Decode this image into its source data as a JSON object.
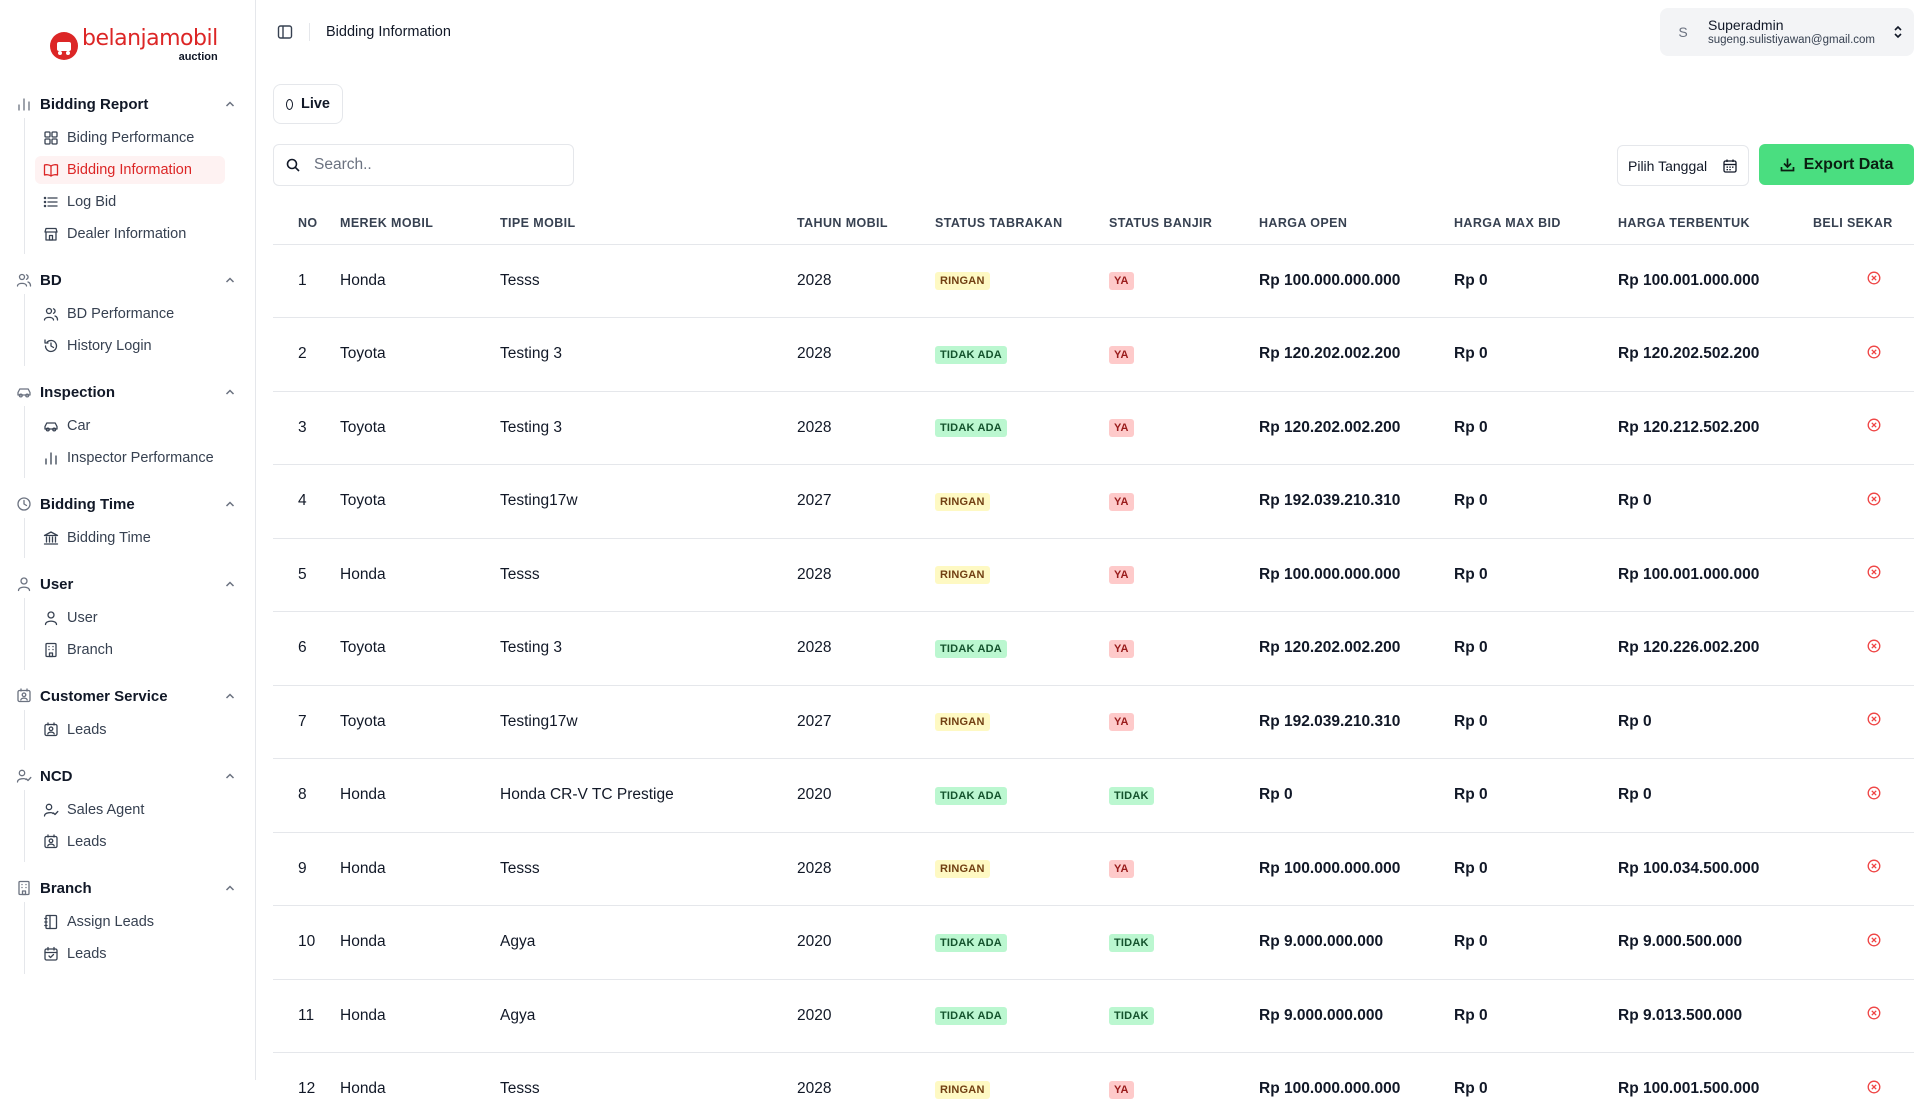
{
  "brand": {
    "name": "belanjamobil",
    "sub": "auction",
    "color": "#dc2626"
  },
  "sidebar": {
    "groups": [
      {
        "label": "Bidding Report",
        "icon": "bar-chart-icon",
        "items": [
          {
            "label": "Biding Performance",
            "icon": "grid-icon"
          },
          {
            "label": "Bidding Information",
            "icon": "book-icon",
            "active": true
          },
          {
            "label": "Log Bid",
            "icon": "list-icon"
          },
          {
            "label": "Dealer Information",
            "icon": "store-icon"
          }
        ]
      },
      {
        "label": "BD",
        "icon": "users-icon",
        "items": [
          {
            "label": "BD Performance",
            "icon": "users-icon"
          },
          {
            "label": "History Login",
            "icon": "history-icon"
          }
        ]
      },
      {
        "label": "Inspection",
        "icon": "car-icon",
        "items": [
          {
            "label": "Car",
            "icon": "car-icon"
          },
          {
            "label": "Inspector Performance",
            "icon": "bar-chart-icon"
          }
        ]
      },
      {
        "label": "Bidding Time",
        "icon": "clock-icon",
        "items": [
          {
            "label": "Bidding Time",
            "icon": "landmark-icon"
          }
        ]
      },
      {
        "label": "User",
        "icon": "user-icon",
        "items": [
          {
            "label": "User",
            "icon": "user-icon"
          },
          {
            "label": "Branch",
            "icon": "building-icon"
          }
        ]
      },
      {
        "label": "Customer Service",
        "icon": "contact-icon",
        "items": [
          {
            "label": "Leads",
            "icon": "contact-icon"
          }
        ]
      },
      {
        "label": "NCD",
        "icon": "user-check-icon",
        "items": [
          {
            "label": "Sales Agent",
            "icon": "user-check-icon"
          },
          {
            "label": "Leads",
            "icon": "contact-icon"
          }
        ]
      },
      {
        "label": "Branch",
        "icon": "building-icon",
        "items": [
          {
            "label": "Assign Leads",
            "icon": "notebook-icon"
          },
          {
            "label": "Leads",
            "icon": "calendar-check-icon"
          }
        ]
      }
    ]
  },
  "header": {
    "breadcrumb": "Bidding Information",
    "user": {
      "initial": "S",
      "name": "Superadmin",
      "email": "sugeng.sulistiyawan@gmail.com"
    }
  },
  "toolbar": {
    "live_label": "Live",
    "search_placeholder": "Search..",
    "date_label": "Pilih Tanggal",
    "export_label": "Export Data"
  },
  "table": {
    "columns": [
      "NO",
      "MEREK MOBIL",
      "TIPE MOBIL",
      "TAHUN MOBIL",
      "STATUS TABRAKAN",
      "STATUS BANJIR",
      "HARGA OPEN",
      "HARGA MAX BID",
      "HARGA TERBENTUK",
      "BELI SEKAR"
    ],
    "rows": [
      {
        "no": "1",
        "merek": "Honda",
        "tipe": "Tesss",
        "tahun": "2028",
        "tabrakan": "RINGAN",
        "banjir": "YA",
        "open": "Rp 100.000.000.000",
        "max": "Rp 0",
        "terbentuk": "Rp 100.001.000.000"
      },
      {
        "no": "2",
        "merek": "Toyota",
        "tipe": "Testing 3",
        "tahun": "2028",
        "tabrakan": "TIDAK ADA",
        "banjir": "YA",
        "open": "Rp 120.202.002.200",
        "max": "Rp 0",
        "terbentuk": "Rp 120.202.502.200"
      },
      {
        "no": "3",
        "merek": "Toyota",
        "tipe": "Testing 3",
        "tahun": "2028",
        "tabrakan": "TIDAK ADA",
        "banjir": "YA",
        "open": "Rp 120.202.002.200",
        "max": "Rp 0",
        "terbentuk": "Rp 120.212.502.200"
      },
      {
        "no": "4",
        "merek": "Toyota",
        "tipe": "Testing17w",
        "tahun": "2027",
        "tabrakan": "RINGAN",
        "banjir": "YA",
        "open": "Rp 192.039.210.310",
        "max": "Rp 0",
        "terbentuk": "Rp 0"
      },
      {
        "no": "5",
        "merek": "Honda",
        "tipe": "Tesss",
        "tahun": "2028",
        "tabrakan": "RINGAN",
        "banjir": "YA",
        "open": "Rp 100.000.000.000",
        "max": "Rp 0",
        "terbentuk": "Rp 100.001.000.000"
      },
      {
        "no": "6",
        "merek": "Toyota",
        "tipe": "Testing 3",
        "tahun": "2028",
        "tabrakan": "TIDAK ADA",
        "banjir": "YA",
        "open": "Rp 120.202.002.200",
        "max": "Rp 0",
        "terbentuk": "Rp 120.226.002.200"
      },
      {
        "no": "7",
        "merek": "Toyota",
        "tipe": "Testing17w",
        "tahun": "2027",
        "tabrakan": "RINGAN",
        "banjir": "YA",
        "open": "Rp 192.039.210.310",
        "max": "Rp 0",
        "terbentuk": "Rp 0"
      },
      {
        "no": "8",
        "merek": "Honda",
        "tipe": "Honda CR-V TC Prestige",
        "tahun": "2020",
        "tabrakan": "TIDAK ADA",
        "banjir": "TIDAK",
        "open": "Rp 0",
        "max": "Rp 0",
        "terbentuk": "Rp 0"
      },
      {
        "no": "9",
        "merek": "Honda",
        "tipe": "Tesss",
        "tahun": "2028",
        "tabrakan": "RINGAN",
        "banjir": "YA",
        "open": "Rp 100.000.000.000",
        "max": "Rp 0",
        "terbentuk": "Rp 100.034.500.000"
      },
      {
        "no": "10",
        "merek": "Honda",
        "tipe": "Agya",
        "tahun": "2020",
        "tabrakan": "TIDAK ADA",
        "banjir": "TIDAK",
        "open": "Rp 9.000.000.000",
        "max": "Rp 0",
        "terbentuk": "Rp 9.000.500.000"
      },
      {
        "no": "11",
        "merek": "Honda",
        "tipe": "Agya",
        "tahun": "2020",
        "tabrakan": "TIDAK ADA",
        "banjir": "TIDAK",
        "open": "Rp 9.000.000.000",
        "max": "Rp 0",
        "terbentuk": "Rp 9.013.500.000"
      },
      {
        "no": "12",
        "merek": "Honda",
        "tipe": "Tesss",
        "tahun": "2028",
        "tabrakan": "RINGAN",
        "banjir": "YA",
        "open": "Rp 100.000.000.000",
        "max": "Rp 0",
        "terbentuk": "Rp 100.001.500.000"
      }
    ]
  },
  "colors": {
    "accent": "#dc2626",
    "export": "#4ade80",
    "ringan": "#fef9c3",
    "tidak_ada": "#bbf7d0",
    "ya": "#fecaca",
    "tidak": "#bbf7d0",
    "close": "#ef4444"
  }
}
